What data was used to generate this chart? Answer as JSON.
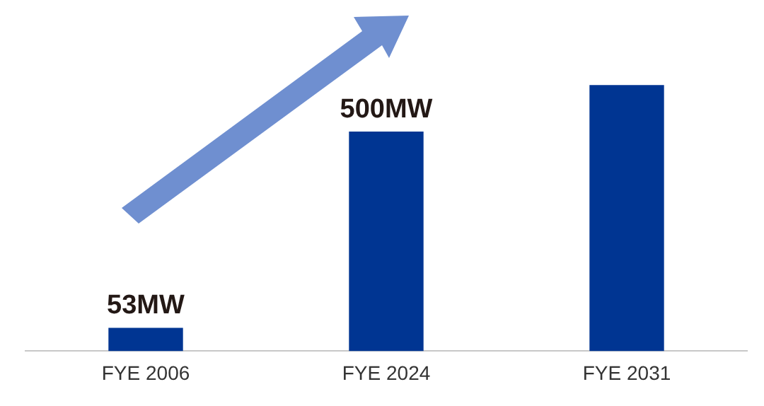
{
  "chart_data": {
    "type": "bar",
    "categories": [
      "FYE 2006",
      "FYE 2024",
      "FYE 2031"
    ],
    "values": [
      53,
      500,
      606
    ],
    "value_labels": [
      "53MW",
      "500MW",
      null
    ],
    "color": "#003592",
    "grid": false,
    "legend": false
  }
}
